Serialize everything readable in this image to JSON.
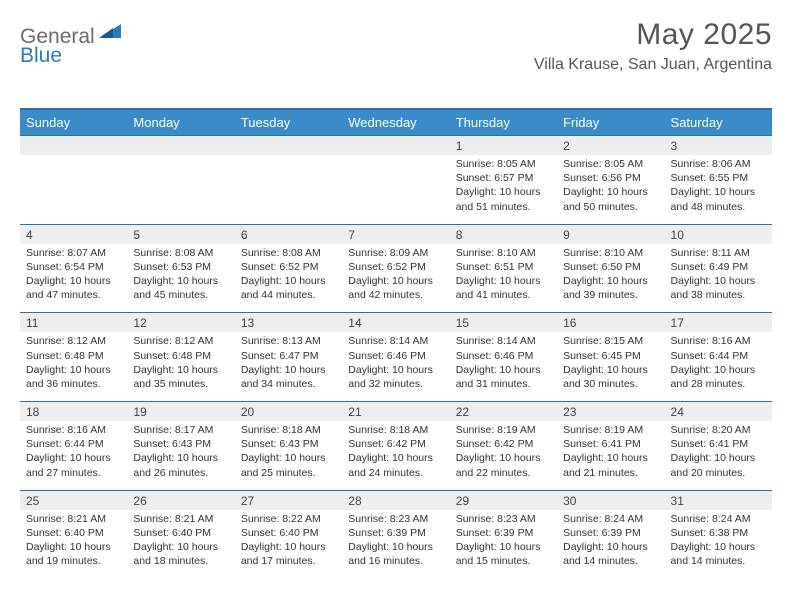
{
  "brand": {
    "part1": "General",
    "part2": "Blue"
  },
  "title": "May 2025",
  "location": "Villa Krause, San Juan, Argentina",
  "colors": {
    "header_bg": "#3b8bc9",
    "header_border": "#2b6fa3",
    "daynum_bg": "#eeeeee",
    "text": "#333333",
    "logo_gray": "#6b6b6b",
    "logo_blue": "#2b7bbf"
  },
  "day_headers": [
    "Sunday",
    "Monday",
    "Tuesday",
    "Wednesday",
    "Thursday",
    "Friday",
    "Saturday"
  ],
  "weeks": [
    [
      null,
      null,
      null,
      null,
      {
        "n": "1",
        "sunrise": "8:05 AM",
        "sunset": "6:57 PM",
        "daylight": "10 hours and 51 minutes."
      },
      {
        "n": "2",
        "sunrise": "8:05 AM",
        "sunset": "6:56 PM",
        "daylight": "10 hours and 50 minutes."
      },
      {
        "n": "3",
        "sunrise": "8:06 AM",
        "sunset": "6:55 PM",
        "daylight": "10 hours and 48 minutes."
      }
    ],
    [
      {
        "n": "4",
        "sunrise": "8:07 AM",
        "sunset": "6:54 PM",
        "daylight": "10 hours and 47 minutes."
      },
      {
        "n": "5",
        "sunrise": "8:08 AM",
        "sunset": "6:53 PM",
        "daylight": "10 hours and 45 minutes."
      },
      {
        "n": "6",
        "sunrise": "8:08 AM",
        "sunset": "6:52 PM",
        "daylight": "10 hours and 44 minutes."
      },
      {
        "n": "7",
        "sunrise": "8:09 AM",
        "sunset": "6:52 PM",
        "daylight": "10 hours and 42 minutes."
      },
      {
        "n": "8",
        "sunrise": "8:10 AM",
        "sunset": "6:51 PM",
        "daylight": "10 hours and 41 minutes."
      },
      {
        "n": "9",
        "sunrise": "8:10 AM",
        "sunset": "6:50 PM",
        "daylight": "10 hours and 39 minutes."
      },
      {
        "n": "10",
        "sunrise": "8:11 AM",
        "sunset": "6:49 PM",
        "daylight": "10 hours and 38 minutes."
      }
    ],
    [
      {
        "n": "11",
        "sunrise": "8:12 AM",
        "sunset": "6:48 PM",
        "daylight": "10 hours and 36 minutes."
      },
      {
        "n": "12",
        "sunrise": "8:12 AM",
        "sunset": "6:48 PM",
        "daylight": "10 hours and 35 minutes."
      },
      {
        "n": "13",
        "sunrise": "8:13 AM",
        "sunset": "6:47 PM",
        "daylight": "10 hours and 34 minutes."
      },
      {
        "n": "14",
        "sunrise": "8:14 AM",
        "sunset": "6:46 PM",
        "daylight": "10 hours and 32 minutes."
      },
      {
        "n": "15",
        "sunrise": "8:14 AM",
        "sunset": "6:46 PM",
        "daylight": "10 hours and 31 minutes."
      },
      {
        "n": "16",
        "sunrise": "8:15 AM",
        "sunset": "6:45 PM",
        "daylight": "10 hours and 30 minutes."
      },
      {
        "n": "17",
        "sunrise": "8:16 AM",
        "sunset": "6:44 PM",
        "daylight": "10 hours and 28 minutes."
      }
    ],
    [
      {
        "n": "18",
        "sunrise": "8:16 AM",
        "sunset": "6:44 PM",
        "daylight": "10 hours and 27 minutes."
      },
      {
        "n": "19",
        "sunrise": "8:17 AM",
        "sunset": "6:43 PM",
        "daylight": "10 hours and 26 minutes."
      },
      {
        "n": "20",
        "sunrise": "8:18 AM",
        "sunset": "6:43 PM",
        "daylight": "10 hours and 25 minutes."
      },
      {
        "n": "21",
        "sunrise": "8:18 AM",
        "sunset": "6:42 PM",
        "daylight": "10 hours and 24 minutes."
      },
      {
        "n": "22",
        "sunrise": "8:19 AM",
        "sunset": "6:42 PM",
        "daylight": "10 hours and 22 minutes."
      },
      {
        "n": "23",
        "sunrise": "8:19 AM",
        "sunset": "6:41 PM",
        "daylight": "10 hours and 21 minutes."
      },
      {
        "n": "24",
        "sunrise": "8:20 AM",
        "sunset": "6:41 PM",
        "daylight": "10 hours and 20 minutes."
      }
    ],
    [
      {
        "n": "25",
        "sunrise": "8:21 AM",
        "sunset": "6:40 PM",
        "daylight": "10 hours and 19 minutes."
      },
      {
        "n": "26",
        "sunrise": "8:21 AM",
        "sunset": "6:40 PM",
        "daylight": "10 hours and 18 minutes."
      },
      {
        "n": "27",
        "sunrise": "8:22 AM",
        "sunset": "6:40 PM",
        "daylight": "10 hours and 17 minutes."
      },
      {
        "n": "28",
        "sunrise": "8:23 AM",
        "sunset": "6:39 PM",
        "daylight": "10 hours and 16 minutes."
      },
      {
        "n": "29",
        "sunrise": "8:23 AM",
        "sunset": "6:39 PM",
        "daylight": "10 hours and 15 minutes."
      },
      {
        "n": "30",
        "sunrise": "8:24 AM",
        "sunset": "6:39 PM",
        "daylight": "10 hours and 14 minutes."
      },
      {
        "n": "31",
        "sunrise": "8:24 AM",
        "sunset": "6:38 PM",
        "daylight": "10 hours and 14 minutes."
      }
    ]
  ],
  "labels": {
    "sunrise": "Sunrise:",
    "sunset": "Sunset:",
    "daylight": "Daylight:"
  }
}
